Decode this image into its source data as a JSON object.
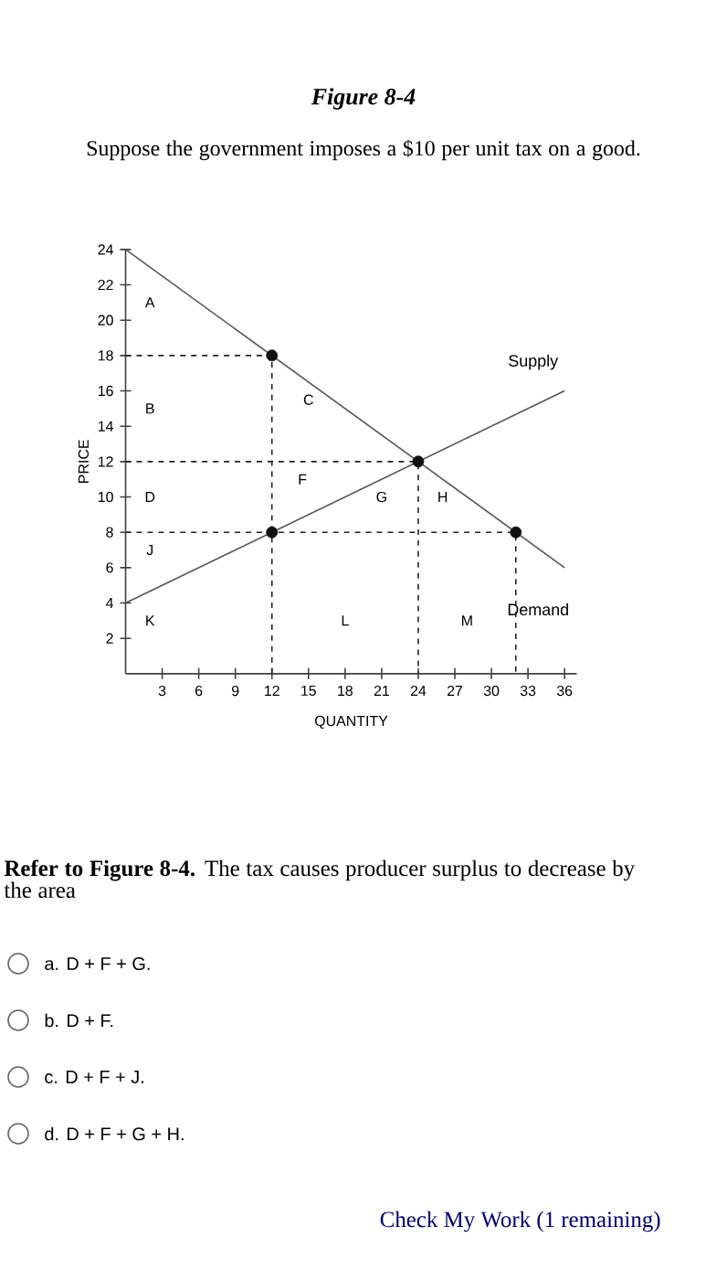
{
  "chart_data": {
    "type": "line",
    "title": "Figure 8-4",
    "subtitle": "Suppose the government imposes a $10 per unit tax on a good.",
    "xlabel": "QUANTITY",
    "ylabel": "PRICE",
    "xlim": [
      0,
      37
    ],
    "ylim": [
      0,
      24
    ],
    "xticks": [
      3,
      6,
      9,
      12,
      15,
      18,
      21,
      24,
      27,
      30,
      33,
      36
    ],
    "yticks": [
      2,
      4,
      6,
      8,
      10,
      12,
      14,
      16,
      18,
      20,
      22,
      24
    ],
    "grid": false,
    "series": [
      {
        "name": "Supply",
        "color": "#555555",
        "x": [
          0,
          36
        ],
        "values": [
          4,
          16
        ]
      },
      {
        "name": "Demand",
        "color": "#555555",
        "x": [
          0,
          36
        ],
        "values": [
          24,
          6
        ]
      },
      {
        "line_style": "dashed",
        "color": "#222222",
        "x": [
          0,
          12,
          12
        ],
        "values": [
          18,
          18,
          0
        ]
      },
      {
        "line_style": "dashed",
        "color": "#222222",
        "x": [
          0,
          24,
          24
        ],
        "values": [
          12,
          12,
          0
        ]
      },
      {
        "line_style": "dashed",
        "color": "#222222",
        "x": [
          0,
          32,
          32
        ],
        "values": [
          8,
          8,
          0
        ]
      },
      {
        "type": "scatter",
        "marker": "circle",
        "color": "#111111",
        "x": [
          12,
          24,
          12,
          32
        ],
        "values": [
          18,
          12,
          8,
          8
        ]
      }
    ],
    "annotations": [
      "A",
      "B",
      "C",
      "D",
      "F",
      "G",
      "H",
      "J",
      "K",
      "L",
      "M",
      "**Refer to Figure 8-4.** The tax causes producer surplus to decrease by the area",
      "a. D + F + G.",
      "b. D + F.",
      "c. D + F + J.",
      "d. D + F + G + H.",
      "Check My Work (1 remaining)"
    ]
  }
}
